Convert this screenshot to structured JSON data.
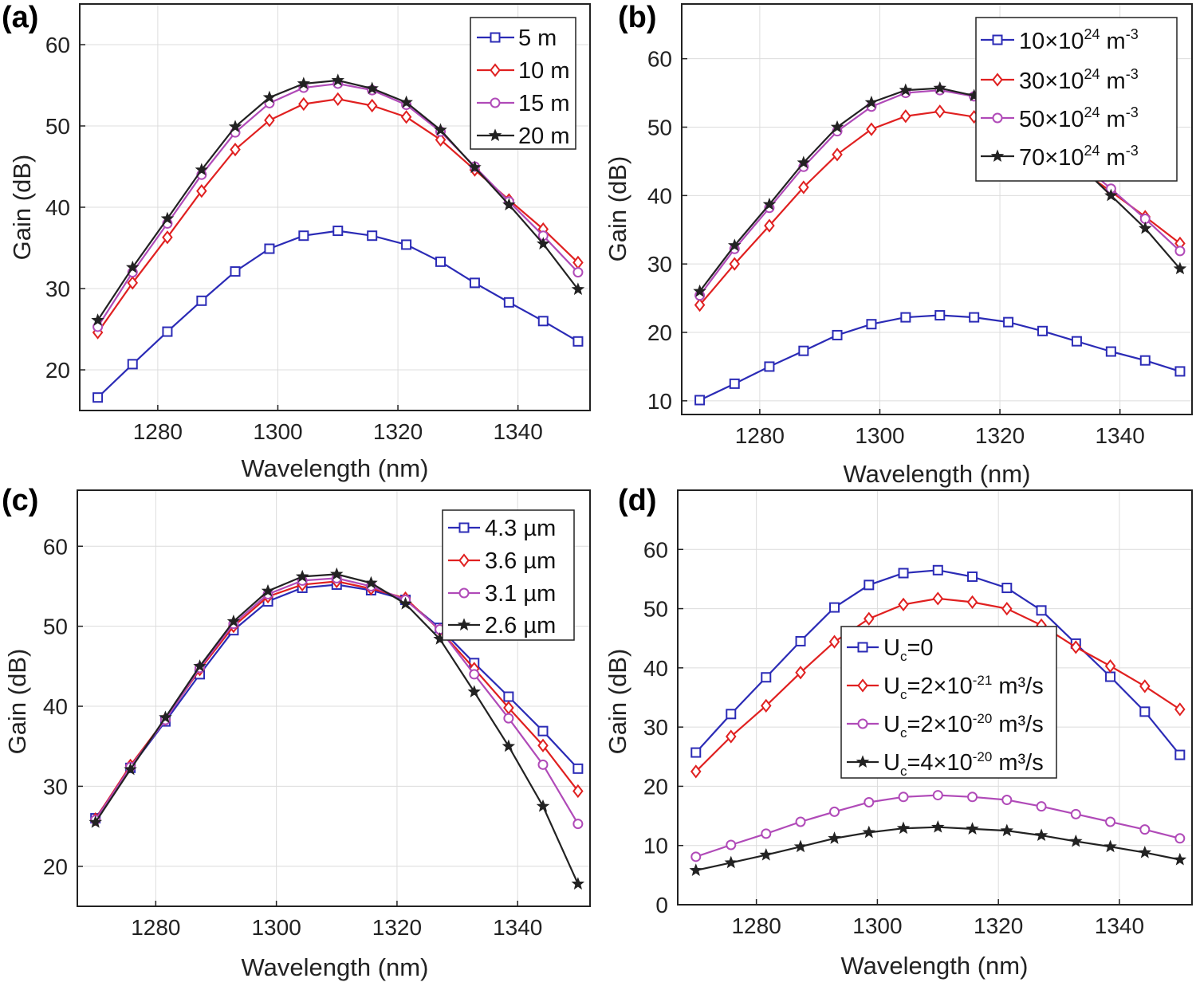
{
  "colors": {
    "blue": "#2b2bb6",
    "red": "#e02020",
    "magenta": "#b04ab8",
    "black": "#222222"
  },
  "chart_data": [
    {
      "id": "a",
      "type": "line",
      "panel_label": "(a)",
      "xlabel": "Wavelength (nm)",
      "ylabel": "Gain (dB)",
      "xlim": [
        1267,
        1352
      ],
      "ylim": [
        15,
        65
      ],
      "xticks": [
        1280,
        1300,
        1320,
        1340
      ],
      "yticks": [
        20,
        30,
        40,
        50,
        60
      ],
      "grid": true,
      "legend_position": "top-right",
      "x": [
        1270,
        1275.8,
        1281.6,
        1287.3,
        1292.9,
        1298.6,
        1304.3,
        1310,
        1315.7,
        1321.4,
        1327.1,
        1332.8,
        1338.5,
        1344.2,
        1350
      ],
      "series": [
        {
          "name": "5 m",
          "color": "#2b2bb6",
          "marker": "square",
          "values": [
            16.6,
            20.7,
            24.7,
            28.5,
            32.1,
            34.9,
            36.5,
            37.1,
            36.5,
            35.4,
            33.3,
            30.7,
            28.3,
            26.0,
            23.5
          ]
        },
        {
          "name": "10 m",
          "color": "#e02020",
          "marker": "diamond",
          "values": [
            24.6,
            30.7,
            36.3,
            42.0,
            47.1,
            50.7,
            52.7,
            53.3,
            52.5,
            51.1,
            48.3,
            44.6,
            40.9,
            37.3,
            33.2
          ]
        },
        {
          "name": "15 m",
          "color": "#b04ab8",
          "marker": "circle",
          "values": [
            25.3,
            32.0,
            38.0,
            44.0,
            49.2,
            52.8,
            54.7,
            55.2,
            54.4,
            52.6,
            49.3,
            45.0,
            40.7,
            36.5,
            32.0
          ]
        },
        {
          "name": "20 m",
          "color": "#222222",
          "marker": "star",
          "values": [
            26.1,
            32.6,
            38.6,
            44.6,
            49.9,
            53.5,
            55.2,
            55.6,
            54.6,
            52.9,
            49.5,
            44.9,
            40.3,
            35.5,
            29.9
          ]
        }
      ]
    },
    {
      "id": "b",
      "type": "line",
      "panel_label": "(b)",
      "xlabel": "Wavelength (nm)",
      "ylabel": "Gain (dB)",
      "xlim": [
        1267,
        1352
      ],
      "ylim": [
        8,
        68
      ],
      "xticks": [
        1280,
        1300,
        1320,
        1340
      ],
      "yticks": [
        10,
        20,
        30,
        40,
        50,
        60
      ],
      "grid": true,
      "legend_position": "top-right",
      "x": [
        1270,
        1275.8,
        1281.6,
        1287.3,
        1292.9,
        1298.6,
        1304.3,
        1310,
        1315.7,
        1321.4,
        1327.1,
        1332.8,
        1338.5,
        1344.2,
        1350
      ],
      "series": [
        {
          "name_base": "10×10",
          "name_exp": "24",
          "name_unit": " m",
          "name_unit_exp": "-3",
          "color": "#2b2bb6",
          "marker": "square",
          "values": [
            10.1,
            12.5,
            15.0,
            17.3,
            19.6,
            21.2,
            22.2,
            22.5,
            22.2,
            21.5,
            20.2,
            18.7,
            17.2,
            15.9,
            14.3
          ]
        },
        {
          "name_base": "30×10",
          "name_exp": "24",
          "name_unit": " m",
          "name_unit_exp": "-3",
          "color": "#e02020",
          "marker": "diamond",
          "values": [
            24.0,
            30.0,
            35.6,
            41.2,
            46.0,
            49.7,
            51.6,
            52.3,
            51.5,
            50.0,
            47.5,
            44.1,
            40.6,
            36.9,
            33.0
          ]
        },
        {
          "name_base": "50×10",
          "name_exp": "24",
          "name_unit": " m",
          "name_unit_exp": "-3",
          "color": "#b04ab8",
          "marker": "circle",
          "values": [
            25.4,
            32.2,
            38.2,
            44.2,
            49.4,
            53.0,
            55.0,
            55.4,
            54.5,
            52.6,
            49.3,
            45.2,
            41.0,
            36.6,
            31.9
          ]
        },
        {
          "name_base": "70×10",
          "name_exp": "24",
          "name_unit": " m",
          "name_unit_exp": "-3",
          "color": "#222222",
          "marker": "star",
          "values": [
            26.0,
            32.7,
            38.7,
            44.8,
            50.0,
            53.6,
            55.4,
            55.7,
            54.6,
            52.8,
            49.3,
            44.8,
            40.0,
            35.2,
            29.3
          ]
        }
      ]
    },
    {
      "id": "c",
      "type": "line",
      "panel_label": "(c)",
      "xlabel": "Wavelength (nm)",
      "ylabel": "Gain (dB)",
      "xlim": [
        1267,
        1352
      ],
      "ylim": [
        15,
        67
      ],
      "xticks": [
        1280,
        1300,
        1320,
        1340
      ],
      "yticks": [
        20,
        30,
        40,
        50,
        60
      ],
      "grid": true,
      "legend_position": "top-right",
      "x": [
        1270,
        1275.8,
        1281.6,
        1287.3,
        1292.9,
        1298.6,
        1304.3,
        1310,
        1315.7,
        1321.4,
        1327.1,
        1332.8,
        1338.5,
        1344.2,
        1350
      ],
      "series": [
        {
          "name": "4.3 µm",
          "color": "#2b2bb6",
          "marker": "square",
          "values": [
            26.0,
            32.3,
            38.1,
            44.0,
            49.5,
            53.1,
            54.8,
            55.2,
            54.5,
            53.3,
            49.8,
            45.4,
            41.2,
            36.9,
            32.2
          ]
        },
        {
          "name": "3.6 µm",
          "color": "#e02020",
          "marker": "diamond",
          "values": [
            25.9,
            32.6,
            38.4,
            44.6,
            50.0,
            53.7,
            55.2,
            55.6,
            54.7,
            53.5,
            49.5,
            44.7,
            39.8,
            35.1,
            29.4
          ]
        },
        {
          "name": "3.1 µm",
          "color": "#b04ab8",
          "marker": "circle",
          "values": [
            25.8,
            32.4,
            38.3,
            44.8,
            50.3,
            54.0,
            55.7,
            56.0,
            55.0,
            53.3,
            49.6,
            44.0,
            38.5,
            32.7,
            25.3
          ]
        },
        {
          "name": "2.6 µm",
          "color": "#222222",
          "marker": "star",
          "values": [
            25.5,
            32.1,
            38.6,
            45.0,
            50.6,
            54.4,
            56.2,
            56.5,
            55.4,
            52.8,
            48.4,
            41.8,
            35.0,
            27.5,
            17.8
          ]
        }
      ]
    },
    {
      "id": "d",
      "type": "line",
      "panel_label": "(d)",
      "xlabel": "Wavelength (nm)",
      "ylabel": "Gain (dB)",
      "xlim": [
        1267,
        1352
      ],
      "ylim": [
        0,
        70
      ],
      "xticks": [
        1280,
        1300,
        1320,
        1340
      ],
      "yticks": [
        0,
        10,
        20,
        30,
        40,
        50,
        60
      ],
      "grid": true,
      "legend_position": "center",
      "x": [
        1270,
        1275.8,
        1281.6,
        1287.3,
        1292.9,
        1298.6,
        1304.3,
        1310,
        1315.7,
        1321.4,
        1327.1,
        1332.8,
        1338.5,
        1344.2,
        1350
      ],
      "series": [
        {
          "name_pre": "U",
          "name_sub": "c",
          "name_mid": "=0",
          "name_exp": "",
          "name_post": "",
          "color": "#2b2bb6",
          "marker": "square",
          "values": [
            25.7,
            32.2,
            38.4,
            44.5,
            50.2,
            54.0,
            56.0,
            56.5,
            55.4,
            53.5,
            49.7,
            44.1,
            38.5,
            32.6,
            25.3
          ]
        },
        {
          "name_pre": "U",
          "name_sub": "c",
          "name_mid": "=2×10",
          "name_exp": "-21",
          "name_post": " m³/s",
          "color": "#e02020",
          "marker": "diamond",
          "values": [
            22.5,
            28.4,
            33.6,
            39.2,
            44.4,
            48.3,
            50.7,
            51.7,
            51.1,
            50.0,
            47.2,
            43.5,
            40.3,
            36.9,
            33.0
          ]
        },
        {
          "name_pre": "U",
          "name_sub": "c",
          "name_mid": "=2×10",
          "name_exp": "-20",
          "name_post": " m³/s",
          "color": "#b04ab8",
          "marker": "circle",
          "values": [
            8.1,
            10.1,
            12.0,
            14.0,
            15.7,
            17.3,
            18.2,
            18.5,
            18.2,
            17.7,
            16.6,
            15.3,
            14.0,
            12.7,
            11.2
          ]
        },
        {
          "name_pre": "U",
          "name_sub": "c",
          "name_mid": "=4×10",
          "name_exp": "-20",
          "name_post": " m³/s",
          "color": "#222222",
          "marker": "star",
          "values": [
            5.8,
            7.1,
            8.4,
            9.8,
            11.2,
            12.2,
            12.9,
            13.1,
            12.8,
            12.5,
            11.7,
            10.7,
            9.8,
            8.8,
            7.6
          ]
        }
      ]
    }
  ]
}
